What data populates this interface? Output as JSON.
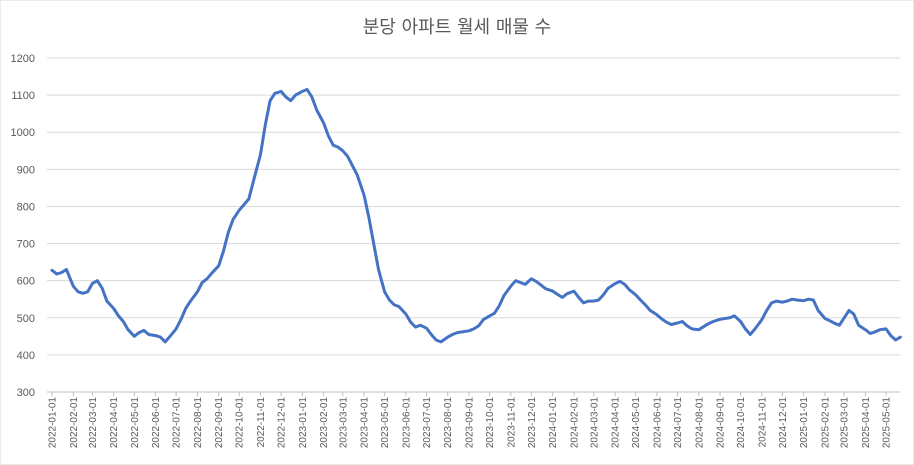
{
  "chart_data": {
    "type": "line",
    "title": "분당 아파트 월세 매물 수",
    "ylim": [
      300,
      1200
    ],
    "y_ticks": [
      300,
      400,
      500,
      600,
      700,
      800,
      900,
      1000,
      1100,
      1200
    ],
    "grid": true,
    "legend": "none",
    "x_tick_labels": [
      "2022-01-01",
      "2022-02-01",
      "2022-03-01",
      "2022-04-01",
      "2022-05-01",
      "2022-06-01",
      "2022-07-01",
      "2022-08-01",
      "2022-09-01",
      "2022-10-01",
      "2022-11-01",
      "2022-12-01",
      "2023-01-01",
      "2023-02-01",
      "2023-03-01",
      "2023-04-01",
      "2023-05-01",
      "2023-06-01",
      "2023-07-01",
      "2023-08-01",
      "2023-09-01",
      "2023-10-01",
      "2023-11-01",
      "2023-12-01",
      "2024-01-01",
      "2024-02-01",
      "2024-03-01",
      "2024-04-01",
      "2024-05-01",
      "2024-06-01",
      "2024-07-01",
      "2024-08-01",
      "2024-09-01",
      "2024-10-01",
      "2024-11-01",
      "2024-12-01",
      "2025-01-01",
      "2025-02-01",
      "2025-03-01",
      "2025-04-01",
      "2025-05-01"
    ],
    "series": [
      {
        "color": "#4472c4",
        "points": [
          [
            "2022-01-01",
            628
          ],
          [
            "2022-01-08",
            618
          ],
          [
            "2022-01-15",
            622
          ],
          [
            "2022-01-22",
            630
          ],
          [
            "2022-02-01",
            585
          ],
          [
            "2022-02-08",
            570
          ],
          [
            "2022-02-15",
            566
          ],
          [
            "2022-02-22",
            570
          ],
          [
            "2022-03-01",
            593
          ],
          [
            "2022-03-08",
            600
          ],
          [
            "2022-03-15",
            580
          ],
          [
            "2022-03-22",
            545
          ],
          [
            "2022-04-01",
            525
          ],
          [
            "2022-04-08",
            505
          ],
          [
            "2022-04-15",
            490
          ],
          [
            "2022-04-22",
            468
          ],
          [
            "2022-05-01",
            450
          ],
          [
            "2022-05-08",
            460
          ],
          [
            "2022-05-15",
            466
          ],
          [
            "2022-05-22",
            455
          ],
          [
            "2022-06-01",
            452
          ],
          [
            "2022-06-08",
            448
          ],
          [
            "2022-06-15",
            435
          ],
          [
            "2022-06-22",
            450
          ],
          [
            "2022-07-01",
            470
          ],
          [
            "2022-07-08",
            495
          ],
          [
            "2022-07-15",
            525
          ],
          [
            "2022-07-22",
            545
          ],
          [
            "2022-08-01",
            570
          ],
          [
            "2022-08-08",
            595
          ],
          [
            "2022-08-15",
            605
          ],
          [
            "2022-08-22",
            620
          ],
          [
            "2022-09-01",
            640
          ],
          [
            "2022-09-08",
            680
          ],
          [
            "2022-09-15",
            730
          ],
          [
            "2022-09-22",
            765
          ],
          [
            "2022-10-01",
            790
          ],
          [
            "2022-10-08",
            805
          ],
          [
            "2022-10-15",
            820
          ],
          [
            "2022-10-22",
            870
          ],
          [
            "2022-11-01",
            940
          ],
          [
            "2022-11-08",
            1020
          ],
          [
            "2022-11-15",
            1085
          ],
          [
            "2022-11-22",
            1105
          ],
          [
            "2022-12-01",
            1110
          ],
          [
            "2022-12-08",
            1095
          ],
          [
            "2022-12-15",
            1085
          ],
          [
            "2022-12-22",
            1100
          ],
          [
            "2023-01-01",
            1110
          ],
          [
            "2023-01-08",
            1115
          ],
          [
            "2023-01-15",
            1095
          ],
          [
            "2023-01-22",
            1060
          ],
          [
            "2023-02-01",
            1025
          ],
          [
            "2023-02-08",
            990
          ],
          [
            "2023-02-15",
            965
          ],
          [
            "2023-02-22",
            960
          ],
          [
            "2023-03-01",
            950
          ],
          [
            "2023-03-08",
            935
          ],
          [
            "2023-03-15",
            910
          ],
          [
            "2023-03-22",
            885
          ],
          [
            "2023-04-01",
            830
          ],
          [
            "2023-04-08",
            770
          ],
          [
            "2023-04-15",
            700
          ],
          [
            "2023-04-22",
            630
          ],
          [
            "2023-05-01",
            570
          ],
          [
            "2023-05-08",
            548
          ],
          [
            "2023-05-15",
            535
          ],
          [
            "2023-05-22",
            530
          ],
          [
            "2023-06-01",
            510
          ],
          [
            "2023-06-08",
            488
          ],
          [
            "2023-06-15",
            475
          ],
          [
            "2023-06-22",
            480
          ],
          [
            "2023-07-01",
            472
          ],
          [
            "2023-07-08",
            455
          ],
          [
            "2023-07-15",
            440
          ],
          [
            "2023-07-22",
            435
          ],
          [
            "2023-08-01",
            448
          ],
          [
            "2023-08-08",
            455
          ],
          [
            "2023-08-15",
            460
          ],
          [
            "2023-08-22",
            462
          ],
          [
            "2023-09-01",
            465
          ],
          [
            "2023-09-08",
            470
          ],
          [
            "2023-09-15",
            478
          ],
          [
            "2023-09-22",
            495
          ],
          [
            "2023-10-01",
            505
          ],
          [
            "2023-10-08",
            512
          ],
          [
            "2023-10-15",
            532
          ],
          [
            "2023-10-22",
            560
          ],
          [
            "2023-11-01",
            585
          ],
          [
            "2023-11-08",
            600
          ],
          [
            "2023-11-15",
            595
          ],
          [
            "2023-11-22",
            590
          ],
          [
            "2023-12-01",
            605
          ],
          [
            "2023-12-08",
            598
          ],
          [
            "2023-12-15",
            588
          ],
          [
            "2023-12-22",
            578
          ],
          [
            "2024-01-01",
            572
          ],
          [
            "2024-01-08",
            563
          ],
          [
            "2024-01-15",
            555
          ],
          [
            "2024-01-22",
            565
          ],
          [
            "2024-02-01",
            572
          ],
          [
            "2024-02-08",
            555
          ],
          [
            "2024-02-15",
            540
          ],
          [
            "2024-02-22",
            545
          ],
          [
            "2024-03-01",
            545
          ],
          [
            "2024-03-08",
            548
          ],
          [
            "2024-03-15",
            562
          ],
          [
            "2024-03-22",
            580
          ],
          [
            "2024-04-01",
            592
          ],
          [
            "2024-04-08",
            598
          ],
          [
            "2024-04-15",
            590
          ],
          [
            "2024-04-22",
            575
          ],
          [
            "2024-05-01",
            562
          ],
          [
            "2024-05-08",
            548
          ],
          [
            "2024-05-15",
            535
          ],
          [
            "2024-05-22",
            520
          ],
          [
            "2024-06-01",
            508
          ],
          [
            "2024-06-08",
            497
          ],
          [
            "2024-06-15",
            488
          ],
          [
            "2024-06-22",
            482
          ],
          [
            "2024-07-01",
            486
          ],
          [
            "2024-07-08",
            490
          ],
          [
            "2024-07-15",
            478
          ],
          [
            "2024-07-22",
            470
          ],
          [
            "2024-08-01",
            468
          ],
          [
            "2024-08-08",
            476
          ],
          [
            "2024-08-15",
            484
          ],
          [
            "2024-08-22",
            490
          ],
          [
            "2024-09-01",
            496
          ],
          [
            "2024-09-08",
            498
          ],
          [
            "2024-09-15",
            500
          ],
          [
            "2024-09-22",
            505
          ],
          [
            "2024-10-01",
            490
          ],
          [
            "2024-10-08",
            470
          ],
          [
            "2024-10-15",
            455
          ],
          [
            "2024-10-22",
            470
          ],
          [
            "2024-11-01",
            495
          ],
          [
            "2024-11-08",
            520
          ],
          [
            "2024-11-15",
            540
          ],
          [
            "2024-11-22",
            545
          ],
          [
            "2024-12-01",
            542
          ],
          [
            "2024-12-08",
            545
          ],
          [
            "2024-12-15",
            550
          ],
          [
            "2024-12-22",
            548
          ],
          [
            "2025-01-01",
            546
          ],
          [
            "2025-01-08",
            550
          ],
          [
            "2025-01-15",
            548
          ],
          [
            "2025-01-22",
            520
          ],
          [
            "2025-02-01",
            498
          ],
          [
            "2025-02-08",
            492
          ],
          [
            "2025-02-15",
            485
          ],
          [
            "2025-02-22",
            480
          ],
          [
            "2025-03-01",
            500
          ],
          [
            "2025-03-08",
            520
          ],
          [
            "2025-03-15",
            510
          ],
          [
            "2025-03-22",
            480
          ],
          [
            "2025-04-01",
            468
          ],
          [
            "2025-04-08",
            458
          ],
          [
            "2025-04-15",
            462
          ],
          [
            "2025-04-22",
            468
          ],
          [
            "2025-05-01",
            470
          ],
          [
            "2025-05-08",
            452
          ],
          [
            "2025-05-15",
            440
          ],
          [
            "2025-05-22",
            448
          ]
        ]
      }
    ]
  }
}
